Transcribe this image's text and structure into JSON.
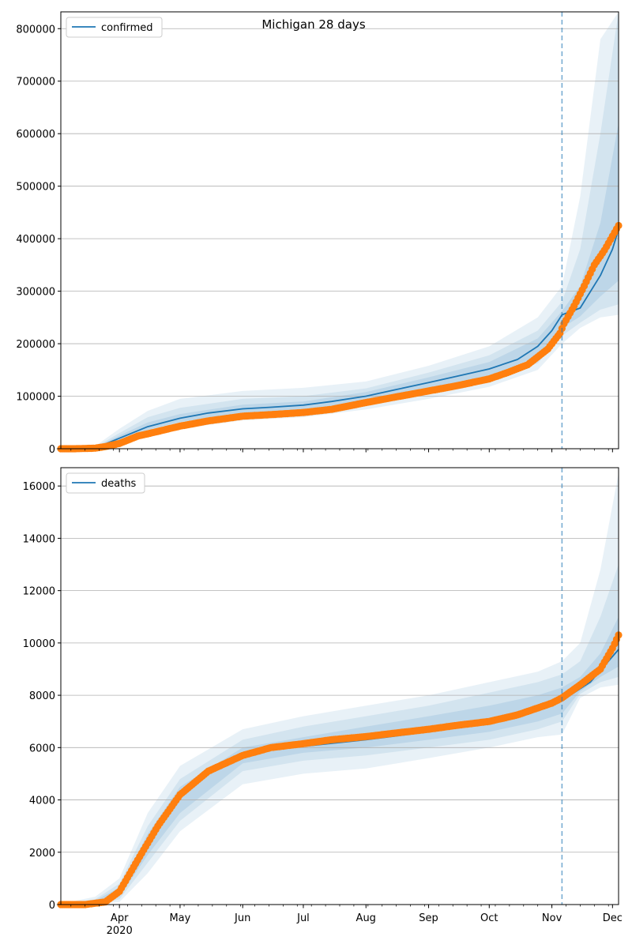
{
  "title": "Michigan 28 days",
  "colors": {
    "model": "#1f77b4",
    "observed": "#ff7f0e",
    "band": "#1f77b4",
    "grid": "#b0b0b0",
    "forecast_line": "#1f77b4"
  },
  "chart_data": [
    {
      "type": "line",
      "title": "Michigan 28 days",
      "legend": [
        "confirmed"
      ],
      "legend_placement": "top-left",
      "grid": true,
      "ylim": [
        0,
        832000
      ],
      "yticks": [
        0,
        100000,
        200000,
        300000,
        400000,
        500000,
        600000,
        700000,
        800000
      ],
      "forecast_start": "2020-11-06",
      "series": [
        {
          "name": "confirmed",
          "role": "model",
          "x": [
            "2020-03-01",
            "2020-03-10",
            "2020-03-20",
            "2020-04-01",
            "2020-04-15",
            "2020-05-01",
            "2020-05-15",
            "2020-06-01",
            "2020-06-15",
            "2020-07-01",
            "2020-07-15",
            "2020-08-01",
            "2020-08-15",
            "2020-09-01",
            "2020-09-15",
            "2020-10-01",
            "2020-10-15",
            "2020-10-25",
            "2020-11-01",
            "2020-11-06",
            "2020-11-15",
            "2020-11-25",
            "2020-12-01",
            "2020-12-04"
          ],
          "y": [
            0,
            0,
            1000,
            20000,
            42000,
            58000,
            68000,
            76000,
            79000,
            83000,
            90000,
            100000,
            112000,
            126000,
            138000,
            152000,
            170000,
            195000,
            225000,
            255000,
            268000,
            330000,
            380000,
            418000
          ]
        },
        {
          "role": "observed",
          "x": [
            "2020-03-01",
            "2020-03-10",
            "2020-03-20",
            "2020-03-25",
            "2020-04-01",
            "2020-04-10",
            "2020-04-20",
            "2020-05-01",
            "2020-05-15",
            "2020-06-01",
            "2020-06-15",
            "2020-07-01",
            "2020-07-15",
            "2020-08-01",
            "2020-08-15",
            "2020-09-01",
            "2020-09-15",
            "2020-10-01",
            "2020-10-10",
            "2020-10-20",
            "2020-10-30",
            "2020-11-05",
            "2020-11-07",
            "2020-11-12",
            "2020-11-17",
            "2020-11-22",
            "2020-11-27",
            "2020-12-01",
            "2020-12-04"
          ],
          "y": [
            0,
            0,
            1000,
            4000,
            10000,
            24000,
            33000,
            43000,
            53000,
            62000,
            65000,
            69000,
            75000,
            88000,
            98000,
            110000,
            120000,
            133000,
            145000,
            160000,
            190000,
            220000,
            238000,
            272000,
            310000,
            350000,
            378000,
            405000,
            425000
          ]
        }
      ],
      "bands": [
        {
          "level": "outer",
          "x": [
            "2020-03-01",
            "2020-03-20",
            "2020-04-01",
            "2020-04-15",
            "2020-05-01",
            "2020-06-01",
            "2020-07-01",
            "2020-08-01",
            "2020-09-01",
            "2020-10-01",
            "2020-10-25",
            "2020-11-06",
            "2020-11-15",
            "2020-11-25",
            "2020-12-04"
          ],
          "lower": [
            0,
            0,
            8000,
            25000,
            38000,
            54000,
            60000,
            75000,
            95000,
            118000,
            150000,
            200000,
            230000,
            250000,
            255000
          ],
          "upper": [
            0,
            5000,
            38000,
            72000,
            95000,
            110000,
            116000,
            128000,
            158000,
            195000,
            250000,
            310000,
            480000,
            780000,
            832000
          ]
        },
        {
          "level": "middle",
          "x": [
            "2020-03-01",
            "2020-03-20",
            "2020-04-01",
            "2020-04-15",
            "2020-05-01",
            "2020-06-01",
            "2020-07-01",
            "2020-08-01",
            "2020-09-01",
            "2020-10-01",
            "2020-10-25",
            "2020-11-06",
            "2020-11-15",
            "2020-11-25",
            "2020-12-04"
          ],
          "lower": [
            0,
            0,
            12000,
            32000,
            46000,
            62000,
            68000,
            82000,
            104000,
            128000,
            163000,
            215000,
            240000,
            265000,
            275000
          ],
          "upper": [
            0,
            3000,
            30000,
            60000,
            78000,
            95000,
            100000,
            115000,
            145000,
            178000,
            225000,
            280000,
            380000,
            600000,
            832000
          ]
        },
        {
          "level": "inner",
          "x": [
            "2020-03-01",
            "2020-03-20",
            "2020-04-01",
            "2020-04-15",
            "2020-05-01",
            "2020-06-01",
            "2020-07-01",
            "2020-08-01",
            "2020-09-01",
            "2020-10-01",
            "2020-10-25",
            "2020-11-06",
            "2020-11-15",
            "2020-11-25",
            "2020-12-04"
          ],
          "lower": [
            0,
            0,
            15000,
            36000,
            51000,
            68000,
            74000,
            90000,
            113000,
            138000,
            176000,
            230000,
            252000,
            290000,
            320000
          ],
          "upper": [
            0,
            2000,
            25000,
            50000,
            66000,
            84000,
            90000,
            108000,
            136000,
            165000,
            210000,
            262000,
            310000,
            430000,
            620000
          ]
        }
      ]
    },
    {
      "type": "line",
      "legend": [
        "deaths"
      ],
      "legend_placement": "top-left",
      "grid": true,
      "ylim": [
        0,
        16700
      ],
      "yticks": [
        0,
        2000,
        4000,
        6000,
        8000,
        10000,
        12000,
        14000,
        16000
      ],
      "xtick_labels": [
        "Apr\n2020",
        "May",
        "Jun",
        "Jul",
        "Aug",
        "Sep",
        "Oct",
        "Nov",
        "Dec"
      ],
      "forecast_start": "2020-11-06",
      "series": [
        {
          "name": "deaths",
          "role": "model",
          "x": [
            "2020-03-01",
            "2020-03-15",
            "2020-03-25",
            "2020-04-01",
            "2020-04-10",
            "2020-04-20",
            "2020-05-01",
            "2020-05-15",
            "2020-06-01",
            "2020-06-15",
            "2020-07-01",
            "2020-08-01",
            "2020-09-01",
            "2020-10-01",
            "2020-10-20",
            "2020-11-06",
            "2020-11-20",
            "2020-12-04"
          ],
          "y": [
            0,
            0,
            100,
            400,
            1500,
            2900,
            4100,
            5000,
            5600,
            5900,
            6050,
            6300,
            6600,
            6950,
            7300,
            7800,
            8500,
            9750
          ]
        },
        {
          "role": "observed",
          "x": [
            "2020-03-01",
            "2020-03-15",
            "2020-03-25",
            "2020-04-01",
            "2020-04-10",
            "2020-04-20",
            "2020-05-01",
            "2020-05-15",
            "2020-06-01",
            "2020-06-15",
            "2020-07-01",
            "2020-07-15",
            "2020-08-01",
            "2020-08-15",
            "2020-09-01",
            "2020-09-15",
            "2020-10-01",
            "2020-10-15",
            "2020-11-01",
            "2020-11-06",
            "2020-11-15",
            "2020-11-25",
            "2020-12-01",
            "2020-12-04"
          ],
          "y": [
            0,
            0,
            100,
            500,
            1700,
            3000,
            4200,
            5100,
            5700,
            6000,
            6150,
            6300,
            6420,
            6550,
            6700,
            6850,
            7000,
            7250,
            7700,
            7900,
            8400,
            9000,
            9800,
            10300
          ]
        }
      ],
      "bands": [
        {
          "level": "outer",
          "x": [
            "2020-03-01",
            "2020-03-20",
            "2020-04-01",
            "2020-04-15",
            "2020-05-01",
            "2020-06-01",
            "2020-07-01",
            "2020-08-01",
            "2020-09-01",
            "2020-10-01",
            "2020-10-25",
            "2020-11-06",
            "2020-11-15",
            "2020-11-25",
            "2020-12-04"
          ],
          "lower": [
            0,
            0,
            100,
            1200,
            2800,
            4600,
            5000,
            5200,
            5600,
            6000,
            6400,
            6500,
            7900,
            8300,
            8400
          ],
          "upper": [
            0,
            300,
            1000,
            3500,
            5300,
            6700,
            7200,
            7600,
            8000,
            8500,
            8900,
            9300,
            10000,
            12800,
            16500
          ]
        },
        {
          "level": "middle",
          "x": [
            "2020-03-01",
            "2020-03-20",
            "2020-04-01",
            "2020-04-15",
            "2020-05-01",
            "2020-06-01",
            "2020-07-01",
            "2020-08-01",
            "2020-09-01",
            "2020-10-01",
            "2020-10-25",
            "2020-11-06",
            "2020-11-15",
            "2020-11-25",
            "2020-12-04"
          ],
          "lower": [
            0,
            0,
            200,
            1600,
            3200,
            5100,
            5500,
            5700,
            6000,
            6300,
            6700,
            7000,
            8050,
            8500,
            8700
          ],
          "upper": [
            0,
            200,
            800,
            3000,
            4800,
            6300,
            6800,
            7200,
            7600,
            8100,
            8500,
            8800,
            9300,
            11000,
            13000
          ]
        },
        {
          "level": "inner",
          "x": [
            "2020-03-01",
            "2020-03-20",
            "2020-04-01",
            "2020-04-15",
            "2020-05-01",
            "2020-06-01",
            "2020-07-01",
            "2020-08-01",
            "2020-09-01",
            "2020-10-01",
            "2020-10-25",
            "2020-11-06",
            "2020-11-15",
            "2020-11-25",
            "2020-12-04"
          ],
          "lower": [
            0,
            0,
            300,
            1900,
            3500,
            5400,
            5800,
            6000,
            6300,
            6600,
            7000,
            7300,
            8150,
            8700,
            9100
          ],
          "upper": [
            0,
            150,
            650,
            2700,
            4500,
            6000,
            6400,
            6800,
            7200,
            7600,
            8000,
            8300,
            8700,
            9600,
            11000
          ]
        }
      ]
    }
  ]
}
